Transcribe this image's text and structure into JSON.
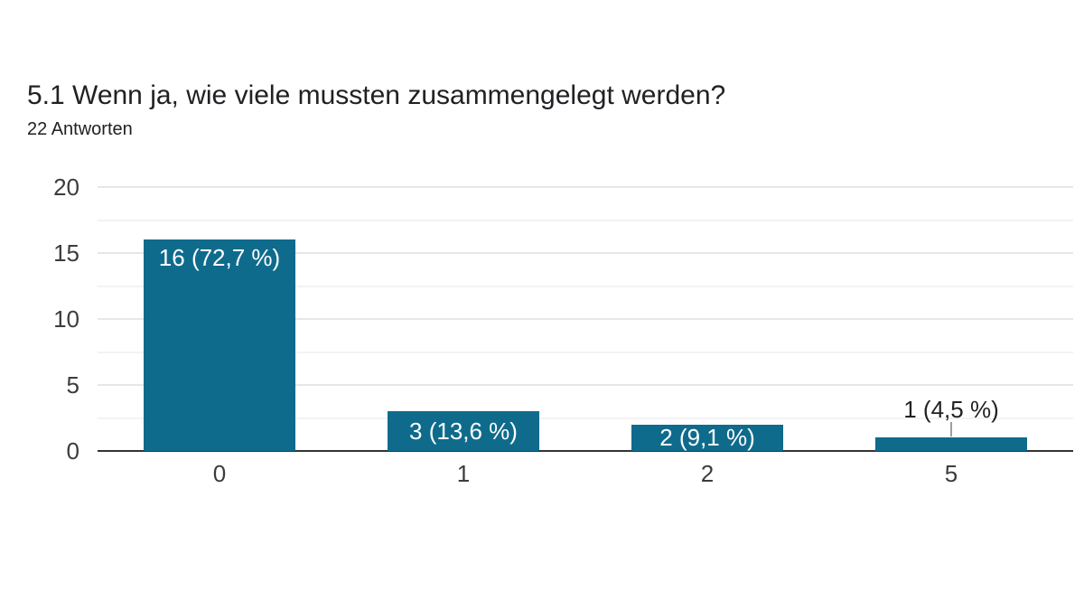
{
  "header": {
    "title": "5.1 Wenn ja, wie viele mussten zusammengelegt werden?",
    "responses": "22 Antworten"
  },
  "chart_data": {
    "type": "bar",
    "title": "",
    "xlabel": "",
    "ylabel": "",
    "categories": [
      "0",
      "1",
      "2",
      "5"
    ],
    "values": [
      16,
      3,
      2,
      1
    ],
    "bar_labels": [
      "16 (72,7 %)",
      "3 (13,6 %)",
      "2 (9,1 %)",
      "1 (4,5 %)"
    ],
    "total_responses": 22,
    "ylim": [
      0,
      20
    ],
    "yticks": [
      0,
      5,
      10,
      15,
      20
    ],
    "minor_grid_step": 2.5,
    "grid": true,
    "legend": "none",
    "colors": {
      "bar": "#0f6b8c",
      "label_inside": "#ffffff",
      "label_outside": "#212121",
      "axis_line": "#333333",
      "major_gridline": "#e7e7e7",
      "minor_gridline": "#f3f3f3",
      "tick_label": "#3c3c3c",
      "leader_line": "#9e9e9e",
      "background": "#ffffff"
    }
  }
}
